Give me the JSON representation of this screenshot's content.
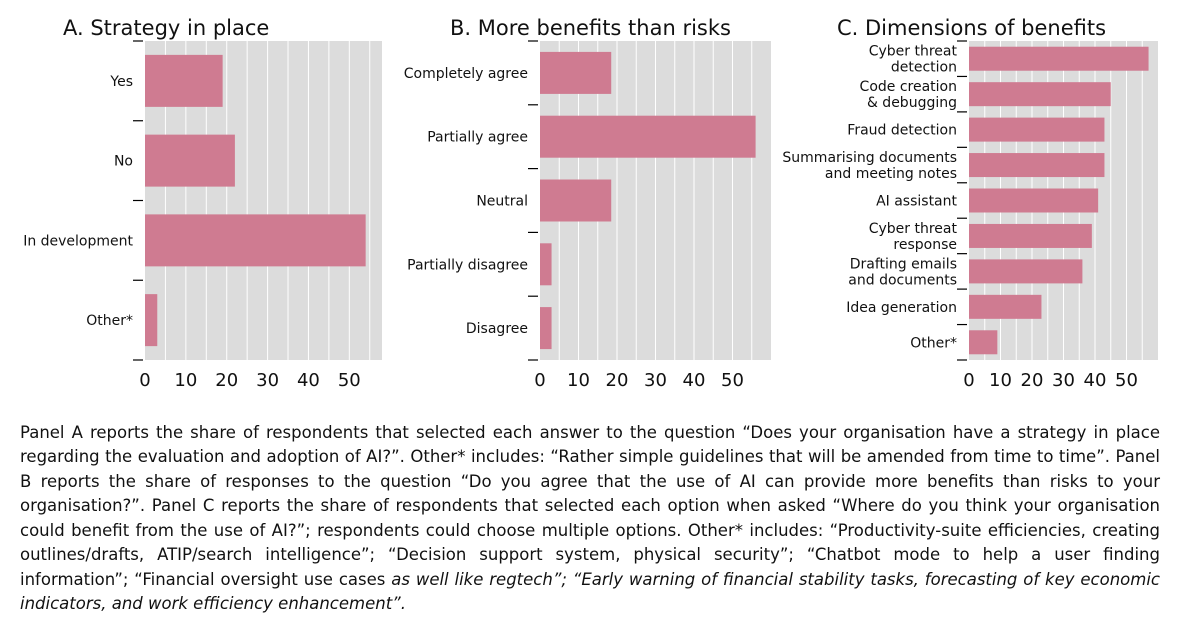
{
  "colors": {
    "bar": "#cf7b91",
    "panel_bg": "#dcdcdc",
    "grid": "#ffffff",
    "axis": "#000000"
  },
  "chart_data": [
    {
      "type": "bar",
      "orientation": "horizontal",
      "title": "A. Strategy in place",
      "categories": [
        "Yes",
        "No",
        "In development",
        "Other*"
      ],
      "values": [
        19,
        22,
        54,
        3
      ],
      "xticks": [
        0,
        10,
        20,
        30,
        40,
        50
      ],
      "xlim": [
        0,
        58
      ],
      "grid": true
    },
    {
      "type": "bar",
      "orientation": "horizontal",
      "title": "B. More benefits than risks",
      "categories": [
        "Completely agree",
        "Partially agree",
        "Neutral",
        "Partially disagree",
        "Disagree"
      ],
      "values": [
        18.5,
        56,
        18.5,
        3,
        3
      ],
      "xticks": [
        0,
        10,
        20,
        30,
        40,
        50
      ],
      "xlim": [
        0,
        60
      ],
      "grid": true
    },
    {
      "type": "bar",
      "orientation": "horizontal",
      "title": "C. Dimensions of benefits",
      "categories": [
        [
          "Cyber threat",
          "detection"
        ],
        [
          "Code creation",
          "& debugging"
        ],
        [
          "Fraud detection"
        ],
        [
          "Summarising documents",
          "and meeting notes"
        ],
        [
          "AI assistant"
        ],
        [
          "Cyber threat",
          "response"
        ],
        [
          "Drafting emails",
          "and documents"
        ],
        [
          "Idea generation"
        ],
        [
          "Other*"
        ]
      ],
      "values": [
        57,
        45,
        43,
        43,
        41,
        39,
        36,
        23,
        9
      ],
      "xticks": [
        0,
        10,
        20,
        30,
        40,
        50
      ],
      "xlim": [
        0,
        60
      ],
      "grid": true
    }
  ],
  "note": [
    {
      "text": "Panel A reports the share of respondents that selected each answer to the question “Does your organisation have a strategy in place regarding the evaluation and adoption of AI?”. Other* includes: “Rather simple guidelines that will be amended from time to time”. Panel B reports the share of responses to the question “Do you agree that the use of AI can provide more benefits than risks to your organisation?”. Panel C reports the share of respondents that selected each option when asked “Where do you think your organisation could benefit from the use of AI?”; respondents could choose multiple options. Other* includes: “Productivity-suite efficiencies, creating outlines/drafts, ATIP/search intelligence”; “Decision support system, physical security”; “Chatbot mode to help a user finding information”; “Financial oversight use cases ",
      "italic": false
    },
    {
      "text": "as well like regtech”; “Early warning of financial stability tasks, forecasting of key economic indicators, and work efficiency enhancement”.",
      "italic": true
    }
  ]
}
